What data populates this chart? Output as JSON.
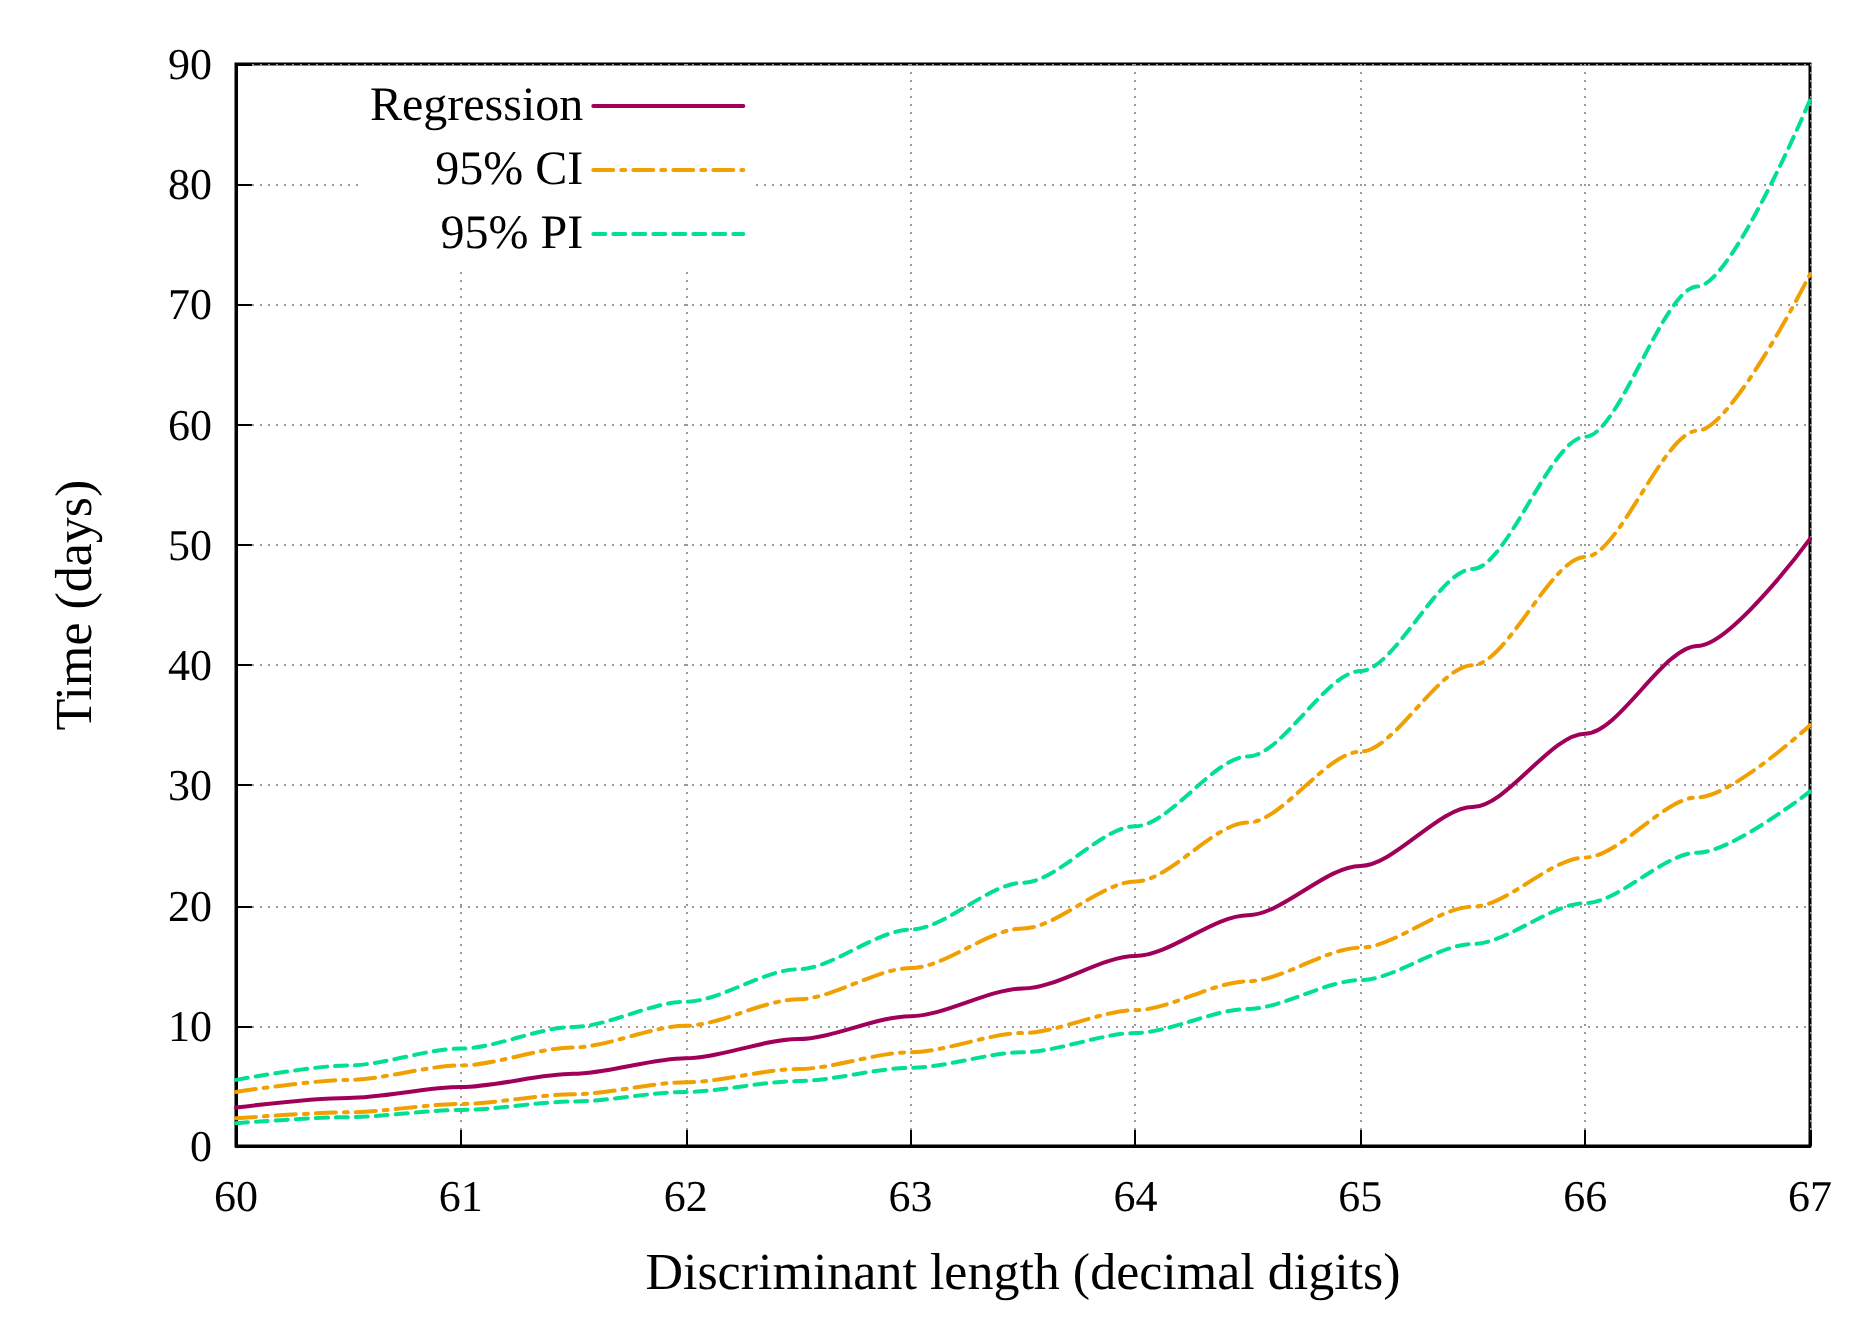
{
  "chart_data": {
    "type": "line",
    "xlabel": "Discriminant length (decimal digits)",
    "ylabel": "Time (days)",
    "x": [
      60,
      60.5,
      61,
      61.5,
      62,
      62.5,
      63,
      63.5,
      64,
      64.5,
      65,
      65.5,
      66,
      66.5,
      67
    ],
    "series": [
      {
        "name": "Regression",
        "color": "#a0005a",
        "line_style": "solid",
        "values": [
          3.2,
          4.0,
          4.9,
          6.0,
          7.3,
          8.9,
          10.8,
          13.1,
          15.8,
          19.2,
          23.3,
          28.2,
          34.3,
          41.6,
          50.5
        ]
      },
      {
        "name": "95% CI",
        "color": "#f0a000",
        "line_style": "dashdot",
        "values": [
          4.5,
          5.5,
          6.7,
          8.2,
          10,
          12.2,
          14.8,
          18.1,
          22,
          26.9,
          32.8,
          40,
          49,
          59.5,
          72.5
        ]
      },
      {
        "color": "#f0a000",
        "line_style": "dashdot",
        "values": [
          2.3,
          2.8,
          3.5,
          4.3,
          5.3,
          6.4,
          7.8,
          9.4,
          11.3,
          13.7,
          16.5,
          19.9,
          24,
          29,
          35
        ]
      },
      {
        "name": "95% PI",
        "color": "#00e090",
        "line_style": "dashed",
        "values": [
          5.5,
          6.7,
          8.1,
          9.9,
          12,
          14.7,
          18,
          21.9,
          26.6,
          32.4,
          39.5,
          48,
          59,
          71.5,
          87
        ]
      },
      {
        "color": "#00e090",
        "line_style": "dashed",
        "values": [
          1.9,
          2.4,
          3,
          3.7,
          4.5,
          5.4,
          6.5,
          7.8,
          9.4,
          11.4,
          13.8,
          16.8,
          20.2,
          24.4,
          29.5
        ]
      }
    ],
    "xlim": [
      60,
      67
    ],
    "xticks": [
      60,
      61,
      62,
      63,
      64,
      65,
      66,
      67
    ],
    "ylim": [
      0,
      90
    ],
    "yticks": [
      0,
      10,
      20,
      30,
      40,
      50,
      60,
      70,
      80,
      90
    ],
    "grid": true,
    "legend": "top left",
    "marker": "none"
  }
}
